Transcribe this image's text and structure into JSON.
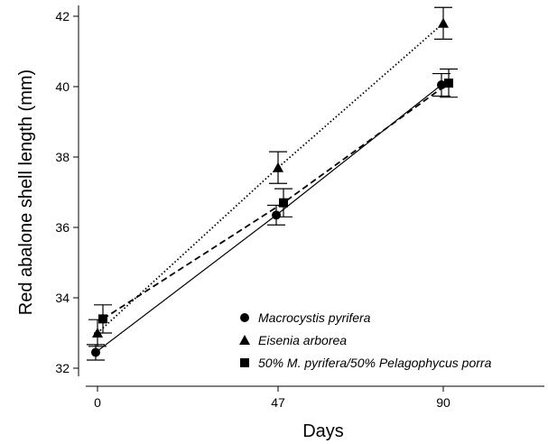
{
  "chart_data": {
    "type": "line",
    "xlabel": "Days",
    "ylabel": "Red abalone shell length (mm)",
    "ylim": [
      31.8,
      42.2
    ],
    "yticks": [
      32,
      34,
      36,
      38,
      40,
      42
    ],
    "x_categories": [
      "0",
      "47",
      "90"
    ],
    "grid": false,
    "legend_position": "bottom-right",
    "series": [
      {
        "name": "Macrocystis pyrifera",
        "marker": "circle",
        "line_style": "solid",
        "values": [
          32.45,
          36.35,
          40.05
        ],
        "errors": [
          0.22,
          0.28,
          0.32
        ]
      },
      {
        "name": "Eisenia arborea",
        "marker": "triangle",
        "line_style": "dotted",
        "values": [
          33.0,
          37.7,
          41.8
        ],
        "errors": [
          0.38,
          0.45,
          0.45
        ]
      },
      {
        "name": "50% M. pyrifera/50% Pelagophycus porra",
        "marker": "square",
        "line_style": "dashed",
        "values": [
          33.4,
          36.7,
          40.1
        ],
        "errors": [
          0.4,
          0.4,
          0.4
        ]
      }
    ]
  }
}
